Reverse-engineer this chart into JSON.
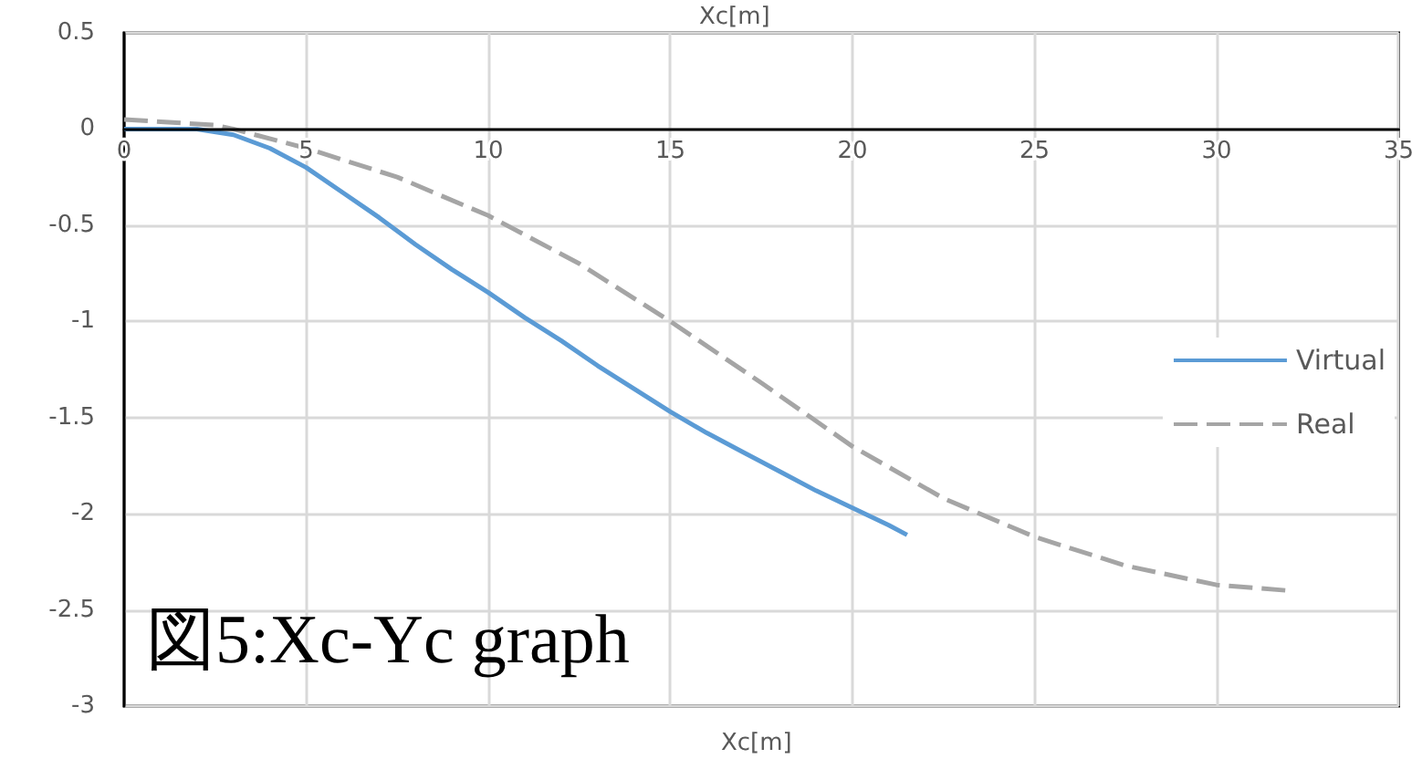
{
  "chart_data": {
    "type": "line",
    "title": "Xc[m]",
    "xlabel": "Xc[m]",
    "annotations": [
      "図5:Xc-Yc graph"
    ],
    "xlim": [
      0,
      35
    ],
    "xticks": [
      0,
      5,
      10,
      15,
      20,
      25,
      30,
      35
    ],
    "ylim": [
      -3,
      0.5
    ],
    "yticks": [
      -3,
      -2.5,
      -2,
      -1.5,
      -1,
      -0.5,
      0,
      0.5
    ],
    "grid": true,
    "legend": "right",
    "marker": "none",
    "series": [
      {
        "name": "Virtual",
        "color": "#5b9bd5",
        "line_style": "solid",
        "x": [
          0,
          1,
          2,
          3,
          4,
          5,
          6,
          7,
          8,
          9,
          10,
          11,
          12,
          13,
          14,
          15,
          16,
          17,
          18,
          19,
          20,
          21,
          21.5
        ],
        "values": [
          0,
          0,
          0,
          -0.03,
          -0.1,
          -0.2,
          -0.33,
          -0.46,
          -0.6,
          -0.73,
          -0.85,
          -0.98,
          -1.1,
          -1.23,
          -1.35,
          -1.47,
          -1.58,
          -1.68,
          -1.78,
          -1.88,
          -1.97,
          -2.06,
          -2.11
        ]
      },
      {
        "name": "Real",
        "color": "#a5a5a5",
        "line_style": "dashed",
        "x": [
          0,
          2.5,
          3,
          5,
          7.5,
          10,
          12.5,
          15,
          17.5,
          20,
          22.5,
          25,
          27.5,
          30,
          32
        ],
        "values": [
          0.05,
          0.02,
          0,
          -0.1,
          -0.25,
          -0.45,
          -0.7,
          -1.0,
          -1.32,
          -1.65,
          -1.92,
          -2.12,
          -2.27,
          -2.37,
          -2.4
        ]
      }
    ]
  }
}
